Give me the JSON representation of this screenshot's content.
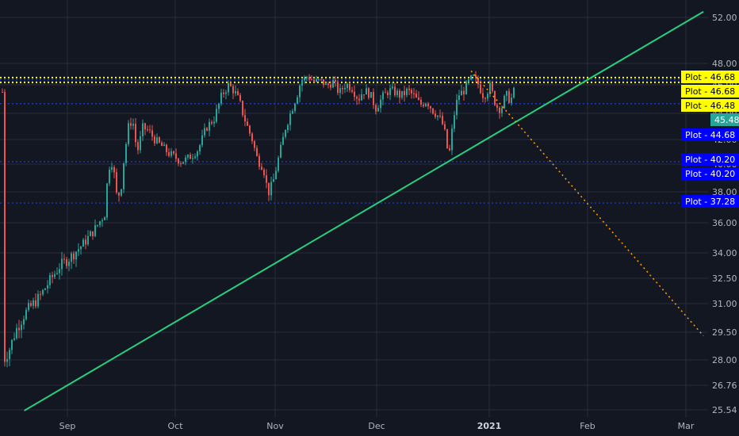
{
  "chart_data": {
    "type": "candlestick",
    "y_ticks": [
      "52.00",
      "48.00",
      "46.00",
      "44.00",
      "42.00",
      "40.00",
      "38.00",
      "36.00",
      "34.00",
      "32.50",
      "31.00",
      "29.50",
      "28.00",
      "26.76",
      "25.54"
    ],
    "x_ticks": [
      {
        "label": "Sep",
        "bold": false
      },
      {
        "label": "Oct",
        "bold": false
      },
      {
        "label": "Nov",
        "bold": false
      },
      {
        "label": "Dec",
        "bold": false
      },
      {
        "label": "2021",
        "bold": true
      },
      {
        "label": "Feb",
        "bold": false
      },
      {
        "label": "Mar",
        "bold": false
      }
    ],
    "horizontal_lines": [
      {
        "value": 46.68,
        "color": "#ffff00",
        "style": "dotted"
      },
      {
        "value": 46.68,
        "color": "#ffff00",
        "style": "dotted"
      },
      {
        "value": 46.48,
        "color": "#1e3fd6",
        "style": "dotted"
      },
      {
        "value": 44.68,
        "color": "#1e3fd6",
        "style": "dotted"
      },
      {
        "value": 40.2,
        "color": "#1e3fd6",
        "style": "dotted"
      },
      {
        "value": 37.28,
        "color": "#1e3fd6",
        "style": "dotted"
      }
    ],
    "price_tags": [
      {
        "text": "Plot - 46.68",
        "bg": "#ffff00",
        "fg": "#000000"
      },
      {
        "text": "Plot - 46.68",
        "bg": "#ffff00",
        "fg": "#000000"
      },
      {
        "text": "Plot - 46.48",
        "bg": "#ffff00",
        "fg": "#000000"
      },
      {
        "text": "45.48",
        "bg": "#26a69a",
        "fg": "#ffffff"
      },
      {
        "text": "Plot - 44.68",
        "bg": "#0000ff",
        "fg": "#ffffff"
      },
      {
        "text": "Plot - 40.20",
        "bg": "#0000ff",
        "fg": "#ffffff"
      },
      {
        "text": "Plot - 40.20",
        "bg": "#0000ff",
        "fg": "#ffffff"
      },
      {
        "text": "Plot - 37.28",
        "bg": "#0000ff",
        "fg": "#ffffff"
      }
    ],
    "trendlines": [
      {
        "name": "",
        "color": "#26d07c",
        "style": "solid",
        "from": {
          "date": "2020-08-20",
          "price": 25.5
        },
        "to": {
          "date": "2021-03-06",
          "price": 52.5
        }
      },
      {
        "name": "",
        "color": "#ff9800",
        "style": "dotted",
        "from": {
          "date": "2020-12-27",
          "price": 47.3
        },
        "to": {
          "date": "2021-03-06",
          "price": 29.3
        }
      }
    ],
    "colors": {
      "background": "#131722",
      "grid": "#2a2e39",
      "up": "#26a69a",
      "down": "#ef5350"
    },
    "grid": true,
    "y_scale": "log"
  }
}
